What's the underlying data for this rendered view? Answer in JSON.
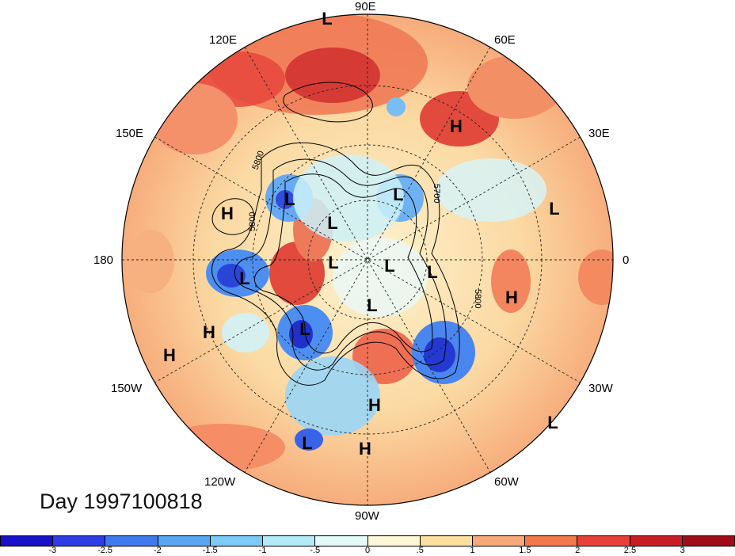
{
  "title": "Day 1997100818",
  "longitude_labels": [
    "90E",
    "60E",
    "30E",
    "0",
    "30W",
    "60W",
    "90W",
    "120W",
    "150W",
    "180",
    "150E",
    "120E"
  ],
  "contour_labels": [
    "5800",
    "5800",
    "5800",
    "5700"
  ],
  "pressure_centers": [
    "L",
    "H",
    "L",
    "H",
    "L",
    "L",
    "L",
    "L",
    "L",
    "H",
    "L",
    "L",
    "L",
    "H",
    "L",
    "H",
    "L",
    "H",
    "H",
    "L"
  ],
  "colorbar": {
    "colors": [
      "#1a10c8",
      "#2e3ce6",
      "#3f7bee",
      "#5aa6f4",
      "#7ccaf6",
      "#b3ecf8",
      "#e6f9f9",
      "#fdf7d7",
      "#fbe0a0",
      "#f8a97a",
      "#f3784e",
      "#e8413a",
      "#c91e26",
      "#a10c18"
    ],
    "ticks": [
      "-3",
      "-2.5",
      "-2",
      "-1.5",
      "-1",
      "-.5",
      "0",
      ".5",
      "1",
      "1.5",
      "2",
      "2.5",
      "3"
    ]
  }
}
